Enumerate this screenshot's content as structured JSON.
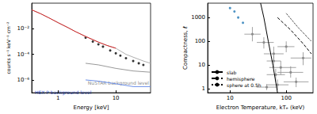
{
  "chart_data": [
    {
      "type": "line",
      "x_label": "Energy [keV]",
      "y_label": "counts s⁻¹ keV⁻¹ cm⁻²",
      "log": true,
      "grid": false,
      "xlim": [
        0.35,
        40
      ],
      "ylim": [
        1e-07,
        1
      ],
      "xticks": [
        1,
        10
      ],
      "yticks": [
        {
          "value": 1e-06,
          "label": "10⁻⁶"
        },
        {
          "value": 0.0001,
          "label": "10⁻⁴"
        },
        {
          "value": 0.01,
          "label": "10⁻²"
        }
      ],
      "series": [
        {
          "type": "line",
          "color": "#b0b0b0",
          "line_style": "solid",
          "x": [
            0.35,
            0.5,
            0.7,
            1,
            1.5,
            2,
            3,
            5,
            7,
            10,
            15,
            20,
            30,
            40
          ],
          "values": [
            0.3,
            0.15,
            0.07,
            0.03,
            0.012,
            0.006,
            0.0025,
            0.0009,
            0.0005,
            0.0003,
            0.0001,
            6e-05,
            3e-05,
            2e-05
          ]
        },
        {
          "type": "line",
          "color": "#d62728",
          "line_style": "solid",
          "x": [
            0.35,
            0.5,
            0.7,
            1,
            1.5,
            2,
            3,
            5,
            7,
            10
          ],
          "values": [
            0.3,
            0.15,
            0.07,
            0.03,
            0.012,
            0.006,
            0.0025,
            0.0009,
            0.0005,
            0.0003
          ]
        },
        {
          "type": "scatter",
          "color": "#000000",
          "marker": "circle",
          "x": [
            3,
            4,
            5,
            6,
            8,
            10,
            12,
            15,
            20,
            25,
            30
          ],
          "values": [
            0.002,
            0.001,
            0.0006,
            0.0004,
            0.0002,
            0.00012,
            8e-05,
            5e-05,
            3e-05,
            2e-05,
            1.5e-05
          ]
        },
        {
          "type": "line",
          "color": "#999999",
          "line_style": "solid",
          "x": [
            3,
            5,
            10,
            20,
            40
          ],
          "values": [
            2e-05,
            1.5e-05,
            8e-06,
            5e-06,
            4e-06
          ]
        },
        {
          "type": "line",
          "color": "#6b8fe8",
          "line_style": "solid",
          "x": [
            3,
            5,
            10,
            20,
            40
          ],
          "values": [
            1e-06,
            8e-07,
            5e-07,
            3e-07,
            3e-07
          ]
        }
      ],
      "annotations": [
        {
          "text": "NuSTAR background level",
          "color": "#8c8c8c"
        },
        {
          "text": "HEX-P background level",
          "color": "#3050d0"
        }
      ]
    },
    {
      "type": "scatter",
      "x_label": "Electron Temperature, kTₑ (keV)",
      "y_label": "Compactness, ℓ",
      "log": true,
      "grid": false,
      "legend": "lower left",
      "xlim": [
        4,
        300
      ],
      "ylim": [
        0.7,
        4000
      ],
      "xticks": [
        10,
        100
      ],
      "yticks": [
        1,
        10,
        100,
        1000
      ],
      "series": [
        {
          "type": "scatter",
          "color": "#1f77b4",
          "marker": "circle",
          "x": [
            10,
            12,
            14,
            17
          ],
          "values": [
            2500,
            1800,
            1000,
            600
          ]
        },
        {
          "type": "scatter",
          "color": "#8c8c8c",
          "marker": "circle",
          "x": [
            25,
            40,
            60,
            60,
            80,
            120,
            65,
            150,
            200,
            100,
            45,
            70
          ],
          "values": [
            200,
            90,
            30,
            15,
            8,
            5,
            4,
            2,
            20,
            60,
            1.2,
            1.5
          ],
          "xerr": [
            [
              18,
              35
            ],
            [
              30,
              60
            ],
            [
              40,
              90
            ],
            [
              45,
              80
            ],
            [
              50,
              150
            ],
            [
              70,
              200
            ],
            [
              45,
              95
            ],
            [
              90,
              250
            ],
            [
              120,
              280
            ],
            [
              70,
              140
            ],
            [
              30,
              70
            ],
            [
              45,
              110
            ]
          ],
          "yerr": [
            [
              100,
              400
            ],
            [
              50,
              150
            ],
            [
              15,
              60
            ],
            [
              8,
              25
            ],
            [
              4,
              15
            ],
            [
              3,
              9
            ],
            [
              2,
              7
            ],
            [
              1.2,
              3
            ],
            [
              10,
              35
            ],
            [
              35,
              100
            ],
            [
              0.9,
              1.6
            ],
            [
              0.9,
              2.5
            ]
          ]
        },
        {
          "name": "slab",
          "type": "line",
          "color": "#000000",
          "line_style": "solid",
          "x": [
            35,
            40,
            48,
            58,
            70
          ],
          "values": [
            4000,
            1000,
            100,
            10,
            0.7
          ]
        },
        {
          "name": "hemisphere",
          "type": "line",
          "color": "#000000",
          "line_style": "dashed",
          "x": [
            70,
            120,
            200,
            280
          ],
          "values": [
            1000,
            300,
            80,
            30
          ]
        },
        {
          "name": "sphere at 0.5h",
          "type": "line",
          "color": "#000000",
          "line_style": "dotted",
          "x": [
            100,
            160,
            280
          ],
          "values": [
            1500,
            400,
            100
          ]
        }
      ]
    }
  ]
}
